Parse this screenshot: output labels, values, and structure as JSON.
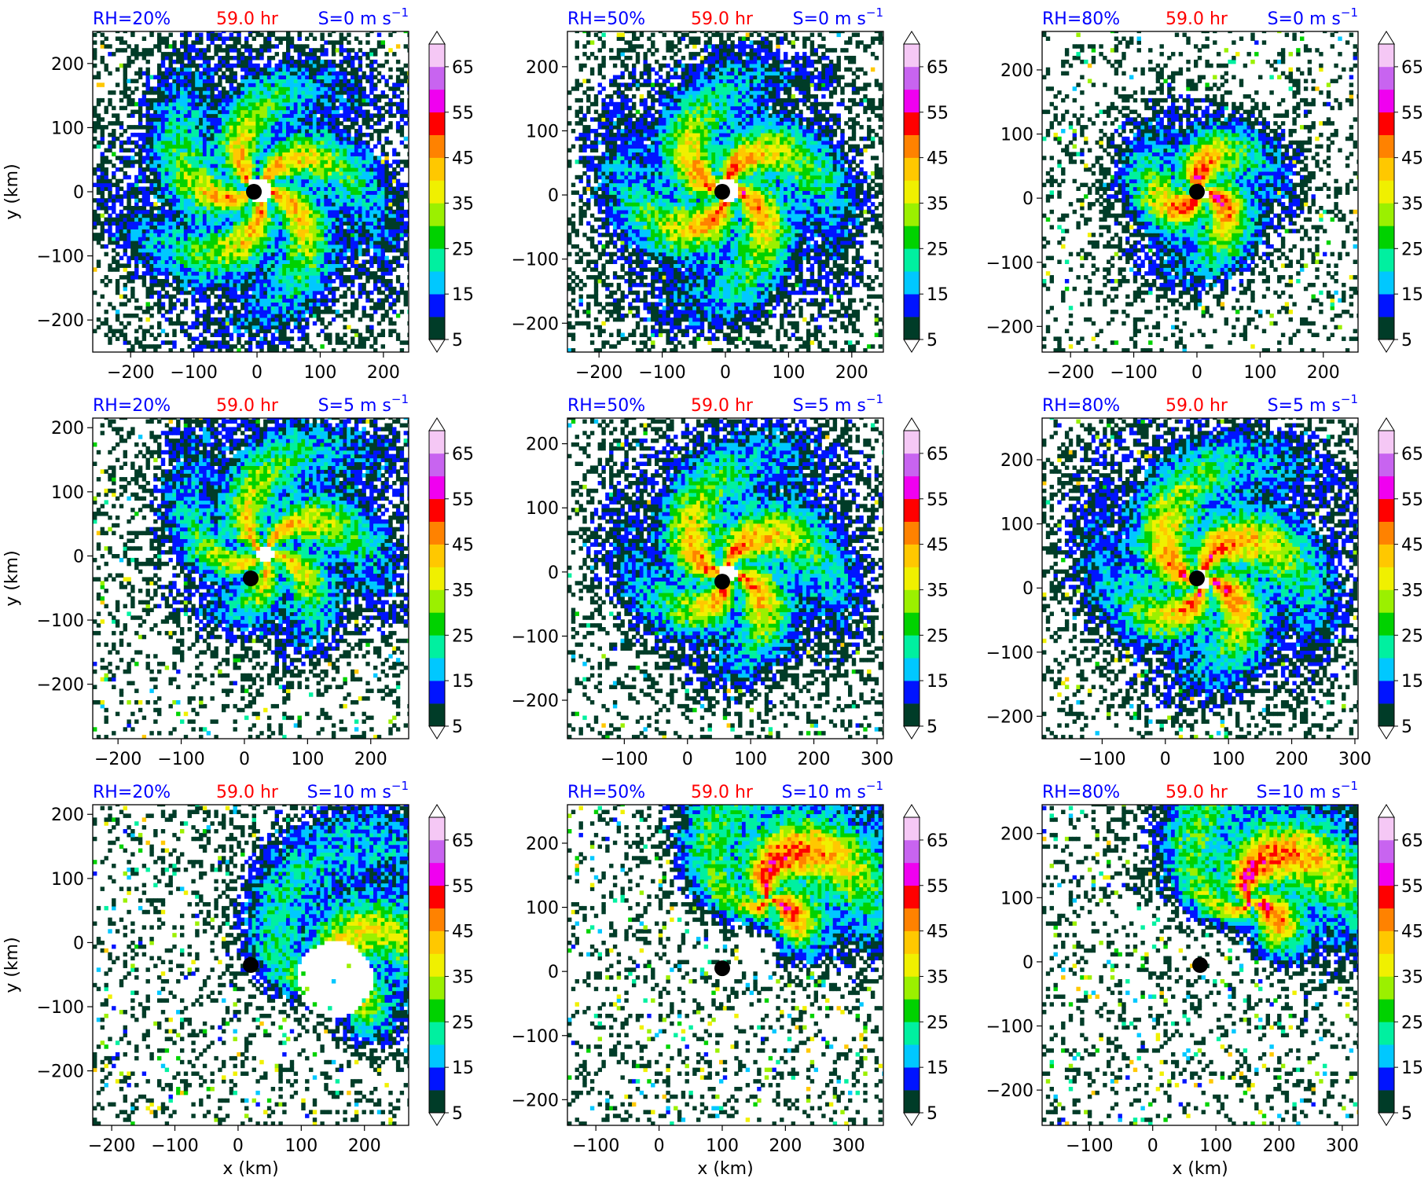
{
  "figure": {
    "colorbar_levels": [
      5,
      10,
      15,
      20,
      25,
      30,
      35,
      40,
      45,
      50,
      55,
      60,
      65,
      70
    ],
    "colorbar_ticks": [
      "5",
      "15",
      "25",
      "35",
      "45",
      "55",
      "65"
    ],
    "colorbar_colors": [
      "#003c28",
      "#0014ff",
      "#00c8ff",
      "#00f0a0",
      "#00d200",
      "#9bf000",
      "#f0f000",
      "#ffc800",
      "#ff8200",
      "#ff0000",
      "#f000f0",
      "#c864f0",
      "#f5c8f5"
    ],
    "colorbar_extend": "both",
    "colors": {
      "blue": "#0000ff",
      "red": "#ff0000"
    }
  },
  "chart_data": [
    {
      "type": "heatmap",
      "row": 0,
      "col": 0,
      "rh_label": "RH=20%",
      "time_label": "59.0 hr",
      "shear_label": "S=0 m s",
      "shear_exp": "−1",
      "xlabel": "",
      "ylabel": "y (km)",
      "xlim": [
        -260,
        240
      ],
      "ylim": [
        -250,
        250
      ],
      "xticks": [
        {
          "v": -200,
          "t": "−200"
        },
        {
          "v": -100,
          "t": "−100"
        },
        {
          "v": 0,
          "t": "0"
        },
        {
          "v": 100,
          "t": "100"
        },
        {
          "v": 200,
          "t": "200"
        }
      ],
      "yticks": [
        {
          "v": -200,
          "t": "−200"
        },
        {
          "v": -100,
          "t": "−100"
        },
        {
          "v": 0,
          "t": "0"
        },
        {
          "v": 100,
          "t": "100"
        },
        {
          "v": 200,
          "t": "200"
        }
      ],
      "center": [
        -5,
        0
      ],
      "storm": {
        "cx": 0,
        "cy": 0,
        "radius": 185,
        "eye": 20,
        "peak": 47,
        "bands": 5,
        "skew": 0
      }
    },
    {
      "type": "heatmap",
      "row": 0,
      "col": 1,
      "rh_label": "RH=50%",
      "time_label": "59.0 hr",
      "shear_label": "S=0 m s",
      "shear_exp": "−1",
      "xlabel": "",
      "ylabel": "",
      "xlim": [
        -250,
        250
      ],
      "ylim": [
        -245,
        255
      ],
      "xticks": [
        {
          "v": -200,
          "t": "−200"
        },
        {
          "v": -100,
          "t": "−100"
        },
        {
          "v": 0,
          "t": "0"
        },
        {
          "v": 100,
          "t": "100"
        },
        {
          "v": 200,
          "t": "200"
        }
      ],
      "yticks": [
        {
          "v": -200,
          "t": "−200"
        },
        {
          "v": -100,
          "t": "−100"
        },
        {
          "v": 0,
          "t": "0"
        },
        {
          "v": 100,
          "t": "100"
        },
        {
          "v": 200,
          "t": "200"
        }
      ],
      "center": [
        -5,
        5
      ],
      "storm": {
        "cx": 0,
        "cy": 5,
        "radius": 170,
        "eye": 18,
        "peak": 50,
        "bands": 4,
        "skew": 0
      }
    },
    {
      "type": "heatmap",
      "row": 0,
      "col": 2,
      "rh_label": "RH=80%",
      "time_label": "59.0 hr",
      "shear_label": "S=0 m s",
      "shear_exp": "−1",
      "xlabel": "",
      "ylabel": "",
      "xlim": [
        -245,
        255
      ],
      "ylim": [
        -240,
        260
      ],
      "xticks": [
        {
          "v": -200,
          "t": "−200"
        },
        {
          "v": -100,
          "t": "−100"
        },
        {
          "v": 0,
          "t": "0"
        },
        {
          "v": 100,
          "t": "100"
        },
        {
          "v": 200,
          "t": "200"
        }
      ],
      "yticks": [
        {
          "v": -200,
          "t": "−200"
        },
        {
          "v": -100,
          "t": "−100"
        },
        {
          "v": 0,
          "t": "0"
        },
        {
          "v": 100,
          "t": "100"
        },
        {
          "v": 200,
          "t": "200"
        }
      ],
      "center": [
        0,
        10
      ],
      "storm": {
        "cx": 5,
        "cy": 5,
        "radius": 110,
        "eye": 10,
        "peak": 56,
        "bands": 3,
        "skew": 0
      }
    },
    {
      "type": "heatmap",
      "row": 1,
      "col": 0,
      "rh_label": "RH=20%",
      "time_label": "59.0 hr",
      "shear_label": "S=5 m s",
      "shear_exp": "−1",
      "xlabel": "",
      "ylabel": "y (km)",
      "xlim": [
        -240,
        260
      ],
      "ylim": [
        -285,
        215
      ],
      "xticks": [
        {
          "v": -200,
          "t": "−200"
        },
        {
          "v": -100,
          "t": "−100"
        },
        {
          "v": 0,
          "t": "0"
        },
        {
          "v": 100,
          "t": "100"
        },
        {
          "v": 200,
          "t": "200"
        }
      ],
      "yticks": [
        {
          "v": -200,
          "t": "−200"
        },
        {
          "v": -100,
          "t": "−100"
        },
        {
          "v": 0,
          "t": "0"
        },
        {
          "v": 100,
          "t": "100"
        },
        {
          "v": 200,
          "t": "200"
        }
      ],
      "center": [
        10,
        -35
      ],
      "storm": {
        "cx": 30,
        "cy": 0,
        "radius": 160,
        "eye": 15,
        "peak": 44,
        "bands": 5,
        "skew": 0.3
      }
    },
    {
      "type": "heatmap",
      "row": 1,
      "col": 1,
      "rh_label": "RH=50%",
      "time_label": "59.0 hr",
      "shear_label": "S=5 m s",
      "shear_exp": "−1",
      "xlabel": "",
      "ylabel": "",
      "xlim": [
        -190,
        310
      ],
      "ylim": [
        -260,
        240
      ],
      "xticks": [
        {
          "v": -100,
          "t": "−100"
        },
        {
          "v": 0,
          "t": "0"
        },
        {
          "v": 100,
          "t": "100"
        },
        {
          "v": 200,
          "t": "200"
        },
        {
          "v": 300,
          "t": "300"
        }
      ],
      "yticks": [
        {
          "v": -200,
          "t": "−200"
        },
        {
          "v": -100,
          "t": "−100"
        },
        {
          "v": 0,
          "t": "0"
        },
        {
          "v": 100,
          "t": "100"
        },
        {
          "v": 200,
          "t": "200"
        }
      ],
      "center": [
        55,
        -15
      ],
      "storm": {
        "cx": 60,
        "cy": -5,
        "radius": 160,
        "eye": 15,
        "peak": 50,
        "bands": 4,
        "skew": 0.2
      }
    },
    {
      "type": "heatmap",
      "row": 1,
      "col": 2,
      "rh_label": "RH=80%",
      "time_label": "59.0 hr",
      "shear_label": "S=5 m s",
      "shear_exp": "−1",
      "xlabel": "",
      "ylabel": "",
      "xlim": [
        -195,
        305
      ],
      "ylim": [
        -235,
        265
      ],
      "xticks": [
        {
          "v": -100,
          "t": "−100"
        },
        {
          "v": 0,
          "t": "0"
        },
        {
          "v": 100,
          "t": "100"
        },
        {
          "v": 200,
          "t": "200"
        },
        {
          "v": 300,
          "t": "300"
        }
      ],
      "yticks": [
        {
          "v": -200,
          "t": "−200"
        },
        {
          "v": -100,
          "t": "−100"
        },
        {
          "v": 0,
          "t": "0"
        },
        {
          "v": 100,
          "t": "100"
        },
        {
          "v": 200,
          "t": "200"
        }
      ],
      "center": [
        50,
        15
      ],
      "storm": {
        "cx": 55,
        "cy": 10,
        "radius": 170,
        "eye": 14,
        "peak": 52,
        "bands": 4,
        "skew": 0.2
      }
    },
    {
      "type": "heatmap",
      "row": 2,
      "col": 0,
      "rh_label": "RH=20%",
      "time_label": "59.0 hr",
      "shear_label": "S=10 m s",
      "shear_exp": "−1",
      "xlabel": "x (km)",
      "ylabel": "y (km)",
      "xlim": [
        -230,
        270
      ],
      "ylim": [
        -285,
        215
      ],
      "xticks": [
        {
          "v": -200,
          "t": "−200"
        },
        {
          "v": -100,
          "t": "−100"
        },
        {
          "v": 0,
          "t": "0"
        },
        {
          "v": 100,
          "t": "100"
        },
        {
          "v": 200,
          "t": "200"
        }
      ],
      "yticks": [
        {
          "v": -200,
          "t": "−200"
        },
        {
          "v": -100,
          "t": "−100"
        },
        {
          "v": 0,
          "t": "0"
        },
        {
          "v": 100,
          "t": "100"
        },
        {
          "v": 200,
          "t": "200"
        }
      ],
      "center": [
        20,
        -35
      ],
      "storm": {
        "cx": 150,
        "cy": -60,
        "radius": 150,
        "eye": 60,
        "peak": 42,
        "bands": 3,
        "skew": 0.7
      }
    },
    {
      "type": "heatmap",
      "row": 2,
      "col": 1,
      "rh_label": "RH=50%",
      "time_label": "59.0 hr",
      "shear_label": "S=10 m s",
      "shear_exp": "−1",
      "xlabel": "x (km)",
      "ylabel": "",
      "xlim": [
        -145,
        355
      ],
      "ylim": [
        -240,
        260
      ],
      "xticks": [
        {
          "v": -100,
          "t": "−100"
        },
        {
          "v": 0,
          "t": "0"
        },
        {
          "v": 100,
          "t": "100"
        },
        {
          "v": 200,
          "t": "200"
        },
        {
          "v": 300,
          "t": "300"
        }
      ],
      "yticks": [
        {
          "v": -200,
          "t": "−200"
        },
        {
          "v": -100,
          "t": "−100"
        },
        {
          "v": 0,
          "t": "0"
        },
        {
          "v": 100,
          "t": "100"
        },
        {
          "v": 200,
          "t": "200"
        }
      ],
      "center": [
        100,
        5
      ],
      "storm": {
        "cx": 170,
        "cy": 110,
        "radius": 140,
        "eye": 0,
        "peak": 54,
        "bands": 3,
        "skew": 0.7
      }
    },
    {
      "type": "heatmap",
      "row": 2,
      "col": 2,
      "rh_label": "RH=80%",
      "time_label": "59.0 hr",
      "shear_label": "S=10 m s",
      "shear_exp": "−1",
      "xlabel": "x (km)",
      "ylabel": "",
      "xlim": [
        -175,
        325
      ],
      "ylim": [
        -255,
        245
      ],
      "xticks": [
        {
          "v": -100,
          "t": "−100"
        },
        {
          "v": 0,
          "t": "0"
        },
        {
          "v": 100,
          "t": "100"
        },
        {
          "v": 200,
          "t": "200"
        },
        {
          "v": 300,
          "t": "300"
        }
      ],
      "yticks": [
        {
          "v": -200,
          "t": "−200"
        },
        {
          "v": -100,
          "t": "−100"
        },
        {
          "v": 0,
          "t": "0"
        },
        {
          "v": 100,
          "t": "100"
        },
        {
          "v": 200,
          "t": "200"
        }
      ],
      "center": [
        75,
        -5
      ],
      "storm": {
        "cx": 150,
        "cy": 90,
        "radius": 140,
        "eye": 0,
        "peak": 54,
        "bands": 3,
        "skew": 0.7
      }
    }
  ]
}
